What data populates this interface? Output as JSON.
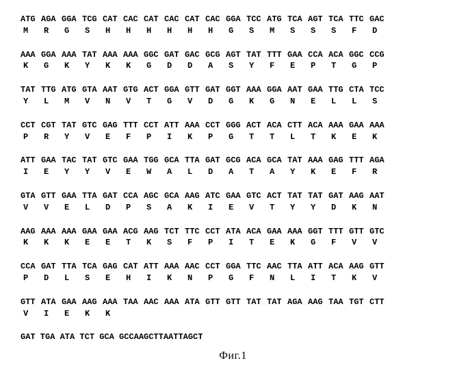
{
  "figure_label": "Фиг.1",
  "font_family": "Courier New",
  "font_size": 12,
  "font_weight": "bold",
  "codon_cell_width": 30,
  "background_color": "#ffffff",
  "text_color": "#000000",
  "rows": [
    {
      "codons": [
        "ATG",
        "AGA",
        "GGA",
        "TCG",
        "CAT",
        "CAC",
        "CAT",
        "CAC",
        "CAT",
        "CAC",
        "GGA",
        "TCC",
        "ATG",
        "TCA",
        "AGT",
        "TCA",
        "TTC",
        "GAC"
      ],
      "aa": [
        "M",
        "R",
        "G",
        "S",
        "H",
        "H",
        "H",
        "H",
        "H",
        "H",
        "G",
        "S",
        "M",
        "S",
        "S",
        "S",
        "F",
        "D"
      ]
    },
    {
      "codons": [
        "AAA",
        "GGA",
        "AAA",
        "TAT",
        "AAA",
        "AAA",
        "GGC",
        "GAT",
        "GAC",
        "GCG",
        "AGT",
        "TAT",
        "TTT",
        "GAA",
        "CCA",
        "ACA",
        "GGC",
        "CCG"
      ],
      "aa": [
        "K",
        "G",
        "K",
        "Y",
        "K",
        "K",
        "G",
        "D",
        "D",
        "A",
        "S",
        "Y",
        "F",
        "E",
        "P",
        "T",
        "G",
        "P"
      ]
    },
    {
      "codons": [
        "TAT",
        "TTG",
        "ATG",
        "GTA",
        "AAT",
        "GTG",
        "ACT",
        "GGA",
        "GTT",
        "GAT",
        "GGT",
        "AAA",
        "GGA",
        "AAT",
        "GAA",
        "TTG",
        "CTA",
        "TCC"
      ],
      "aa": [
        "Y",
        "L",
        "M",
        "V",
        "N",
        "V",
        "T",
        "G",
        "V",
        "D",
        "G",
        "K",
        "G",
        "N",
        "E",
        "L",
        "L",
        "S"
      ]
    },
    {
      "codons": [
        "CCT",
        "CGT",
        "TAT",
        "GTC",
        "GAG",
        "TTT",
        "CCT",
        "ATT",
        "AAA",
        "CCT",
        "GGG",
        "ACT",
        "ACA",
        "CTT",
        "ACA",
        "AAA",
        "GAA",
        "AAA"
      ],
      "aa": [
        "P",
        "R",
        "Y",
        "V",
        "E",
        "F",
        "P",
        "I",
        "K",
        "P",
        "G",
        "T",
        "T",
        "L",
        "T",
        "K",
        "E",
        "K"
      ]
    },
    {
      "codons": [
        "ATT",
        "GAA",
        "TAC",
        "TAT",
        "GTC",
        "GAA",
        "TGG",
        "GCA",
        "TTA",
        "GAT",
        "GCG",
        "ACA",
        "GCA",
        "TAT",
        "AAA",
        "GAG",
        "TTT",
        "AGA"
      ],
      "aa": [
        "I",
        "E",
        "Y",
        "Y",
        "V",
        "E",
        "W",
        "A",
        "L",
        "D",
        "A",
        "T",
        "A",
        "Y",
        "K",
        "E",
        "F",
        "R"
      ]
    },
    {
      "codons": [
        "GTA",
        "GTT",
        "GAA",
        "TTA",
        "GAT",
        "CCA",
        "AGC",
        "GCA",
        "AAG",
        "ATC",
        "GAA",
        "GTC",
        "ACT",
        "TAT",
        "TAT",
        "GAT",
        "AAG",
        "AAT"
      ],
      "aa": [
        "V",
        "V",
        "E",
        "L",
        "D",
        "P",
        "S",
        "A",
        "K",
        "I",
        "E",
        "V",
        "T",
        "Y",
        "Y",
        "D",
        "K",
        "N"
      ]
    },
    {
      "codons": [
        "AAG",
        "AAA",
        "AAA",
        "GAA",
        "GAA",
        "ACG",
        "AAG",
        "TCT",
        "TTC",
        "CCT",
        "ATA",
        "ACA",
        "GAA",
        "AAA",
        "GGT",
        "TTT",
        "GTT",
        "GTC"
      ],
      "aa": [
        "K",
        "K",
        "K",
        "E",
        "E",
        "T",
        "K",
        "S",
        "F",
        "P",
        "I",
        "T",
        "E",
        "K",
        "G",
        "F",
        "V",
        "V"
      ]
    },
    {
      "codons": [
        "CCA",
        "GAT",
        "TTA",
        "TCA",
        "GAG",
        "CAT",
        "ATT",
        "AAA",
        "AAC",
        "CCT",
        "GGA",
        "TTC",
        "AAC",
        "TTA",
        "ATT",
        "ACA",
        "AAG",
        "GTT"
      ],
      "aa": [
        "P",
        "D",
        "L",
        "S",
        "E",
        "H",
        "I",
        "K",
        "N",
        "P",
        "G",
        "F",
        "N",
        "L",
        "I",
        "T",
        "K",
        "V"
      ]
    },
    {
      "codons": [
        "GTT",
        "ATA",
        "GAA",
        "AAG",
        "AAA",
        "TAA",
        "AAC",
        "AAA",
        "ATA",
        "GTT",
        "GTT",
        "TAT",
        "TAT",
        "AGA",
        "AAG",
        "TAA",
        "TGT",
        "CTT"
      ],
      "aa": [
        "V",
        "I",
        "E",
        "K",
        "K"
      ]
    }
  ],
  "trailing_dna": "GAT TGA ATA TCT GCA GCCAAGCTTAATTAGCT"
}
